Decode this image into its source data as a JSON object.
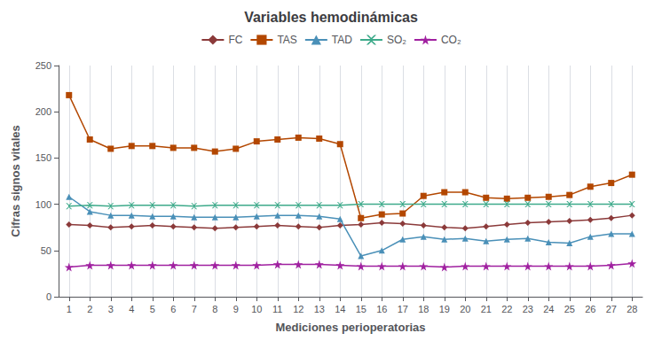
{
  "chart_data": {
    "type": "line",
    "title": "Variables hemodinámicas",
    "x_label": "Mediciones perioperatorias",
    "y_label": "Cifras signos vitales",
    "x": [
      1,
      2,
      3,
      4,
      5,
      6,
      7,
      8,
      9,
      10,
      11,
      12,
      13,
      14,
      15,
      16,
      17,
      18,
      19,
      20,
      21,
      22,
      23,
      24,
      25,
      26,
      27,
      28
    ],
    "series": [
      {
        "name": "FC",
        "color": "#8B3A3A",
        "marker": "diamond",
        "values": [
          78,
          77,
          75,
          76,
          77,
          76,
          75,
          74,
          75,
          76,
          77,
          76,
          75,
          77,
          78,
          80,
          79,
          77,
          75,
          74,
          76,
          78,
          80,
          81,
          82,
          83,
          85,
          88
        ]
      },
      {
        "name": "TAS",
        "color": "#B34700",
        "marker": "square",
        "values": [
          218,
          170,
          160,
          163,
          163,
          161,
          161,
          157,
          160,
          168,
          170,
          172,
          171,
          165,
          85,
          89,
          90,
          109,
          113,
          113,
          107,
          106,
          107,
          108,
          110,
          119,
          123,
          132
        ]
      },
      {
        "name": "TAD",
        "color": "#4A90B8",
        "marker": "triangle",
        "values": [
          108,
          92,
          88,
          88,
          87,
          87,
          86,
          86,
          86,
          87,
          88,
          88,
          87,
          84,
          44,
          50,
          62,
          65,
          62,
          63,
          60,
          62,
          63,
          59,
          58,
          65,
          68,
          68
        ]
      },
      {
        "name": "SO₂",
        "color": "#3DAA8A",
        "marker": "x",
        "values": [
          98,
          99,
          98,
          99,
          99,
          99,
          98,
          99,
          99,
          99,
          99,
          99,
          99,
          99,
          100,
          100,
          100,
          100,
          100,
          100,
          100,
          100,
          100,
          100,
          100,
          100,
          100,
          100
        ]
      },
      {
        "name": "CO₂",
        "color": "#A020A0",
        "marker": "star",
        "values": [
          32,
          34,
          34,
          34,
          34,
          34,
          34,
          34,
          34,
          34,
          35,
          35,
          35,
          34,
          33,
          33,
          33,
          33,
          32,
          33,
          33,
          33,
          33,
          33,
          33,
          33,
          34,
          36
        ]
      }
    ],
    "xlim": [
      0.5,
      28.5
    ],
    "xticks": [
      1,
      2,
      3,
      4,
      5,
      6,
      7,
      8,
      9,
      10,
      11,
      12,
      13,
      14,
      15,
      16,
      17,
      18,
      19,
      20,
      21,
      22,
      23,
      24,
      25,
      26,
      27,
      28
    ],
    "ylim": [
      0,
      250
    ],
    "yticks": [
      0,
      50,
      100,
      150,
      200,
      250
    ],
    "grid": "x",
    "legend": "top"
  }
}
